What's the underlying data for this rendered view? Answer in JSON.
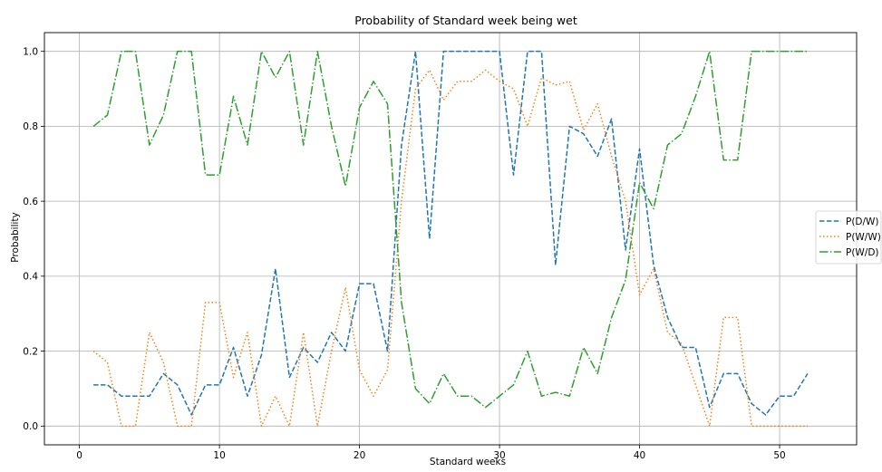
{
  "chart_data": {
    "type": "line",
    "title": "Probability of Standard week being wet",
    "xlabel": "Standard weeks",
    "ylabel": "Probability",
    "xlim": [
      -2.5,
      55.5
    ],
    "ylim": [
      -0.05,
      1.05
    ],
    "xticks": [
      0,
      10,
      20,
      30,
      40,
      50
    ],
    "yticks": [
      0.0,
      0.2,
      0.4,
      0.6,
      0.8,
      1.0
    ],
    "xtick_labels": [
      "0",
      "10",
      "20",
      "30",
      "40",
      "50"
    ],
    "ytick_labels": [
      "0.0",
      "0.2",
      "0.4",
      "0.6",
      "0.8",
      "1.0"
    ],
    "grid": true,
    "legend_position": "center-right",
    "x": [
      1,
      2,
      3,
      4,
      5,
      6,
      7,
      8,
      9,
      10,
      11,
      12,
      13,
      14,
      15,
      16,
      17,
      18,
      19,
      20,
      21,
      22,
      23,
      24,
      25,
      26,
      27,
      28,
      29,
      30,
      31,
      32,
      33,
      34,
      35,
      36,
      37,
      38,
      39,
      40,
      41,
      42,
      43,
      44,
      45,
      46,
      47,
      48,
      49,
      50,
      51,
      52
    ],
    "series": [
      {
        "name": "P(D/W)",
        "color": "#1f77b4",
        "dash": "dashed",
        "values": [
          0.11,
          0.11,
          0.08,
          0.08,
          0.08,
          0.14,
          0.11,
          0.03,
          0.11,
          0.11,
          0.21,
          0.08,
          0.19,
          0.42,
          0.13,
          0.21,
          0.17,
          0.25,
          0.2,
          0.38,
          0.38,
          0.2,
          0.75,
          1.0,
          0.5,
          1.0,
          1.0,
          1.0,
          1.0,
          1.0,
          0.67,
          1.0,
          1.0,
          0.43,
          0.8,
          0.78,
          0.72,
          0.82,
          0.47,
          0.74,
          0.43,
          0.29,
          0.21,
          0.21,
          0.05,
          0.14,
          0.14,
          0.06,
          0.03,
          0.08,
          0.08,
          0.14
        ]
      },
      {
        "name": "P(W/W)",
        "color": "#ff7f0e",
        "dash": "dotted",
        "values": [
          0.2,
          0.17,
          0.0,
          0.0,
          0.25,
          0.17,
          0.0,
          0.0,
          0.33,
          0.33,
          0.13,
          0.25,
          0.0,
          0.08,
          0.0,
          0.25,
          0.0,
          0.2,
          0.37,
          0.15,
          0.08,
          0.15,
          0.6,
          0.9,
          0.95,
          0.87,
          0.92,
          0.92,
          0.95,
          0.92,
          0.9,
          0.8,
          0.93,
          0.91,
          0.92,
          0.79,
          0.86,
          0.72,
          0.6,
          0.35,
          0.42,
          0.25,
          0.22,
          0.11,
          0.0,
          0.29,
          0.29,
          0.0,
          0.0,
          0.0,
          0.0,
          0.0
        ]
      },
      {
        "name": "P(W/D)",
        "color": "#2ca02c",
        "dash": "dashdot",
        "values": [
          0.8,
          0.83,
          1.0,
          1.0,
          0.75,
          0.83,
          1.0,
          1.0,
          0.67,
          0.67,
          0.88,
          0.75,
          1.0,
          0.93,
          1.0,
          0.75,
          1.0,
          0.8,
          0.64,
          0.85,
          0.92,
          0.86,
          0.33,
          0.1,
          0.06,
          0.14,
          0.08,
          0.08,
          0.05,
          0.08,
          0.11,
          0.2,
          0.08,
          0.09,
          0.08,
          0.21,
          0.14,
          0.29,
          0.39,
          0.65,
          0.58,
          0.75,
          0.78,
          0.88,
          1.0,
          0.71,
          0.71,
          1.0,
          1.0,
          1.0,
          1.0,
          1.0
        ]
      }
    ]
  }
}
